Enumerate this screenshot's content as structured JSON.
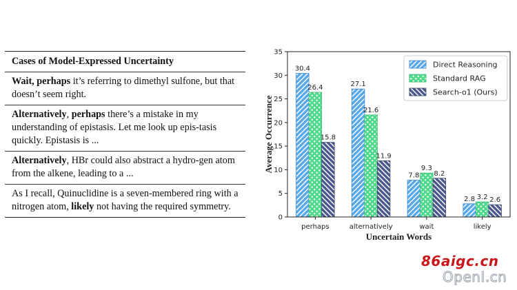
{
  "cases": {
    "title": "Cases of Model-Expressed Uncertainty",
    "rows": [
      [
        {
          "b": true,
          "t": "Wait, perhaps"
        },
        {
          "b": false,
          "t": " it’s referring to dimethyl sulfone, but that doesn’t seem right."
        }
      ],
      [
        {
          "b": true,
          "t": "Alternatively"
        },
        {
          "b": false,
          "t": ", "
        },
        {
          "b": true,
          "t": "perhaps"
        },
        {
          "b": false,
          "t": " there’s a mistake in my understanding of epistasis. Let me look up epis-tasis quickly. Epistasis is ..."
        }
      ],
      [
        {
          "b": true,
          "t": "Alternatively"
        },
        {
          "b": false,
          "t": ", HBr could also abstract a hydro-gen atom from the alkene, leading to a ..."
        }
      ],
      [
        {
          "b": false,
          "t": "As I recall, Quinuclidine is a seven-membered ring with a nitrogen atom, "
        },
        {
          "b": true,
          "t": "likely"
        },
        {
          "b": false,
          "t": " not having the required symmetry."
        }
      ]
    ]
  },
  "chart_data": {
    "type": "bar",
    "xlabel": "Uncertain Words",
    "ylabel": "Average Occurrence",
    "ylim": [
      0,
      35
    ],
    "yticks": [
      0,
      5,
      10,
      15,
      20,
      25,
      30,
      35
    ],
    "categories": [
      "perhaps",
      "alternatively",
      "wait",
      "likely"
    ],
    "series": [
      {
        "name": "Direct Reasoning",
        "values": [
          30.4,
          27.1,
          7.8,
          2.8
        ],
        "color": "#58a8ec",
        "edge": "#3a86cf",
        "pattern": "diagonal"
      },
      {
        "name": "Standard RAG",
        "values": [
          26.4,
          21.6,
          9.3,
          3.2
        ],
        "color": "#4fd98a",
        "edge": "#36b870",
        "pattern": "dots"
      },
      {
        "name": "Search-o1 (Ours)",
        "values": [
          15.8,
          11.9,
          8.2,
          2.6
        ],
        "color": "#4a5a8c",
        "edge": "#3a4770",
        "pattern": "backdiagonal"
      }
    ],
    "legend_position": "top-right",
    "grid": false
  },
  "watermark": {
    "line1": "86aigc.cn",
    "line2": "OpenI.cn"
  }
}
